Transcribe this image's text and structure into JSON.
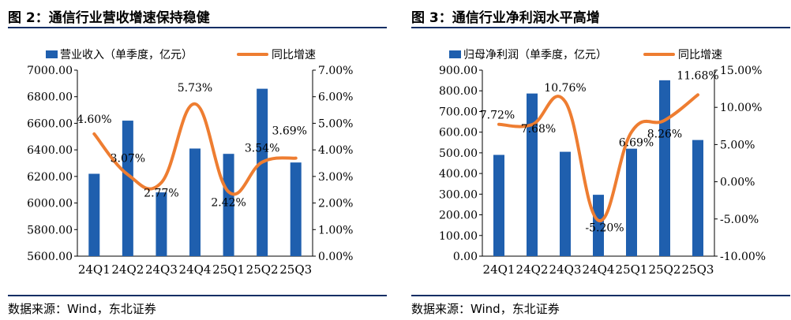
{
  "charts": [
    {
      "title": "图 2：通信行业营收增速保持稳健",
      "source": "数据来源：Wind，东北证券",
      "colors": {
        "bar": "#1f5fae",
        "line": "#ee7d31"
      },
      "chart_data": {
        "type": "bar",
        "categories": [
          "24Q1",
          "24Q2",
          "24Q3",
          "24Q4",
          "25Q1",
          "25Q2",
          "25Q3"
        ],
        "series": [
          {
            "name": "营业收入（单季度，亿元）",
            "type": "bar",
            "axis": "left",
            "values": [
              6220,
              6620,
              6080,
              6410,
              6370,
              6860,
              6305
            ]
          },
          {
            "name": "同比增速",
            "type": "line",
            "axis": "right",
            "values": [
              4.6,
              3.07,
              2.77,
              5.73,
              2.42,
              3.54,
              3.69
            ],
            "labels": [
              "4.60%",
              "3.07%",
              "2.77%",
              "5.73%",
              "2.42%",
              "3.54%",
              "3.69%"
            ]
          }
        ],
        "y_left": {
          "ylim": [
            5600,
            7000
          ],
          "ticks": [
            "5600.00",
            "5800.00",
            "6000.00",
            "6200.00",
            "6400.00",
            "6600.00",
            "6800.00",
            "7000.00"
          ]
        },
        "y_right": {
          "ylim": [
            0,
            7
          ],
          "ticks": [
            "0.00%",
            "1.00%",
            "2.00%",
            "3.00%",
            "4.00%",
            "5.00%",
            "6.00%",
            "7.00%"
          ]
        },
        "grid": false,
        "legend": "top"
      }
    },
    {
      "title": "图 3：通信行业净利润水平高增",
      "source": "数据来源：Wind，东北证券",
      "colors": {
        "bar": "#1f5fae",
        "line": "#ee7d31"
      },
      "chart_data": {
        "type": "bar",
        "categories": [
          "24Q1",
          "24Q2",
          "24Q3",
          "24Q4",
          "25Q1",
          "25Q2",
          "25Q3"
        ],
        "series": [
          {
            "name": "归母净利润（单季度，亿元）",
            "type": "bar",
            "axis": "left",
            "values": [
              490,
              787,
              505,
              297,
              520,
              851,
              562
            ]
          },
          {
            "name": "同比增速",
            "type": "line",
            "axis": "right",
            "values": [
              7.72,
              7.68,
              10.76,
              -5.2,
              6.69,
              8.26,
              11.68
            ],
            "labels": [
              "7.72%",
              "7.68%",
              "10.76%",
              "-5.20%",
              "6.69%",
              "8.26%",
              "11.68%"
            ]
          }
        ],
        "y_left": {
          "ylim": [
            0,
            900
          ],
          "ticks": [
            "0.00",
            "100.00",
            "200.00",
            "300.00",
            "400.00",
            "500.00",
            "600.00",
            "700.00",
            "800.00",
            "900.00"
          ]
        },
        "y_right": {
          "ylim": [
            -10,
            15
          ],
          "ticks": [
            "-10.00%",
            "-5.00%",
            "0.00%",
            "5.00%",
            "10.00%",
            "15.00%"
          ]
        },
        "grid": false,
        "legend": "top"
      }
    }
  ]
}
